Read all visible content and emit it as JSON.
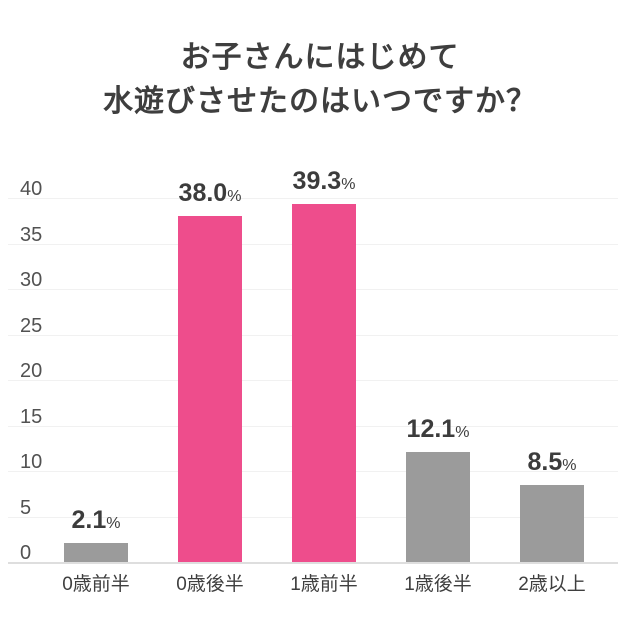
{
  "page": {
    "background_color": "#ffffff"
  },
  "header": {
    "title_line1": "お子さんにはじめて",
    "title_line2": "水遊びさせたのはいつですか？",
    "title_color": "#3e3e3e"
  },
  "chart_data": {
    "type": "bar",
    "title": "お子さんにはじめて水遊びさせたのはいつですか？",
    "categories": [
      "0歳前半",
      "0歳後半",
      "1歳前半",
      "1歳後半",
      "2歳以上"
    ],
    "values": [
      2.1,
      38.0,
      39.3,
      12.1,
      8.5
    ],
    "value_labels": [
      "2.1",
      "38.0",
      "39.3",
      "12.1",
      "8.5"
    ],
    "value_suffix": "%",
    "bar_colors": [
      "#9b9b9b",
      "#ee4d8c",
      "#ee4d8c",
      "#9b9b9b",
      "#9b9b9b"
    ],
    "yticks": [
      0,
      5,
      10,
      15,
      20,
      25,
      30,
      35,
      40
    ],
    "ylim": [
      0,
      40
    ],
    "xlabel": "",
    "ylabel": "",
    "grid": true,
    "legend": "none",
    "gridline_color": "#f1f1f1",
    "axis_line_color": "#dedede",
    "tick_label_color": "#525252",
    "category_label_color": "#3f3f3f",
    "value_label_color": "#3c3c3c"
  }
}
